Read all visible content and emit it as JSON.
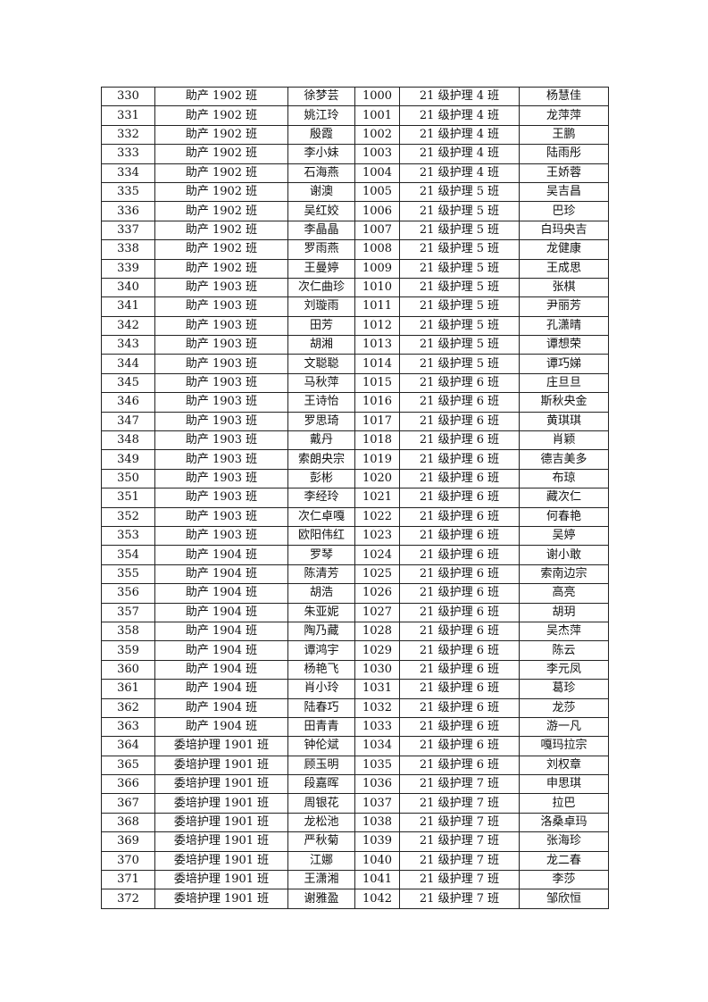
{
  "table": {
    "rows": [
      [
        "330",
        "助产 1902 班",
        "徐梦芸",
        "1000",
        "21 级护理 4 班",
        "杨慧佳"
      ],
      [
        "331",
        "助产 1902 班",
        "姚江玲",
        "1001",
        "21 级护理 4 班",
        "龙萍萍"
      ],
      [
        "332",
        "助产 1902 班",
        "殷霞",
        "1002",
        "21 级护理 4 班",
        "王鹏"
      ],
      [
        "333",
        "助产 1902 班",
        "李小妹",
        "1003",
        "21 级护理 4 班",
        "陆雨彤"
      ],
      [
        "334",
        "助产 1902 班",
        "石海燕",
        "1004",
        "21 级护理 4 班",
        "王娇蓉"
      ],
      [
        "335",
        "助产 1902 班",
        "谢澳",
        "1005",
        "21 级护理 5 班",
        "吴吉昌"
      ],
      [
        "336",
        "助产 1902 班",
        "吴红姣",
        "1006",
        "21 级护理 5 班",
        "巴珍"
      ],
      [
        "337",
        "助产 1902 班",
        "李晶晶",
        "1007",
        "21 级护理 5 班",
        "白玛央吉"
      ],
      [
        "338",
        "助产 1902 班",
        "罗雨燕",
        "1008",
        "21 级护理 5 班",
        "龙健康"
      ],
      [
        "339",
        "助产 1902 班",
        "王曼婷",
        "1009",
        "21 级护理 5 班",
        "王成思"
      ],
      [
        "340",
        "助产 1903 班",
        "次仁曲珍",
        "1010",
        "21 级护理 5 班",
        "张棋"
      ],
      [
        "341",
        "助产 1903 班",
        "刘璇雨",
        "1011",
        "21 级护理 5 班",
        "尹丽芳"
      ],
      [
        "342",
        "助产 1903 班",
        "田芳",
        "1012",
        "21 级护理 5 班",
        "孔潇晴"
      ],
      [
        "343",
        "助产 1903 班",
        "胡湘",
        "1013",
        "21 级护理 5 班",
        "谭想荣"
      ],
      [
        "344",
        "助产 1903 班",
        "文聪聪",
        "1014",
        "21 级护理 5 班",
        "谭巧娣"
      ],
      [
        "345",
        "助产 1903 班",
        "马秋萍",
        "1015",
        "21 级护理 6 班",
        "庄旦旦"
      ],
      [
        "346",
        "助产 1903 班",
        "王诗怡",
        "1016",
        "21 级护理 6 班",
        "斯秋央金"
      ],
      [
        "347",
        "助产 1903 班",
        "罗思琦",
        "1017",
        "21 级护理 6 班",
        "黄琪琪"
      ],
      [
        "348",
        "助产 1903 班",
        "戴丹",
        "1018",
        "21 级护理 6 班",
        "肖颖"
      ],
      [
        "349",
        "助产 1903 班",
        "索朗央宗",
        "1019",
        "21 级护理 6 班",
        "德吉美多"
      ],
      [
        "350",
        "助产 1903 班",
        "彭彬",
        "1020",
        "21 级护理 6 班",
        "布琼"
      ],
      [
        "351",
        "助产 1903 班",
        "李经玲",
        "1021",
        "21 级护理 6 班",
        "藏次仁"
      ],
      [
        "352",
        "助产 1903 班",
        "次仁卓嘎",
        "1022",
        "21 级护理 6 班",
        "何春艳"
      ],
      [
        "353",
        "助产 1903 班",
        "欧阳伟红",
        "1023",
        "21 级护理 6 班",
        "吴婷"
      ],
      [
        "354",
        "助产 1904 班",
        "罗琴",
        "1024",
        "21 级护理 6 班",
        "谢小敢"
      ],
      [
        "355",
        "助产 1904 班",
        "陈清芳",
        "1025",
        "21 级护理 6 班",
        "索南边宗"
      ],
      [
        "356",
        "助产 1904 班",
        "胡浩",
        "1026",
        "21 级护理 6 班",
        "高亮"
      ],
      [
        "357",
        "助产 1904 班",
        "朱亚妮",
        "1027",
        "21 级护理 6 班",
        "胡玥"
      ],
      [
        "358",
        "助产 1904 班",
        "陶乃藏",
        "1028",
        "21 级护理 6 班",
        "吴杰萍"
      ],
      [
        "359",
        "助产 1904 班",
        "谭鸿宇",
        "1029",
        "21 级护理 6 班",
        "陈云"
      ],
      [
        "360",
        "助产 1904 班",
        "杨艳飞",
        "1030",
        "21 级护理 6 班",
        "李元凤"
      ],
      [
        "361",
        "助产 1904 班",
        "肖小玲",
        "1031",
        "21 级护理 6 班",
        "葛珍"
      ],
      [
        "362",
        "助产 1904 班",
        "陆春巧",
        "1032",
        "21 级护理 6 班",
        "龙莎"
      ],
      [
        "363",
        "助产 1904 班",
        "田青青",
        "1033",
        "21 级护理 6 班",
        "游一凡"
      ],
      [
        "364",
        "委培护理 1901 班",
        "钟伦斌",
        "1034",
        "21 级护理 6 班",
        "嘎玛拉宗"
      ],
      [
        "365",
        "委培护理 1901 班",
        "顾玉明",
        "1035",
        "21 级护理 6 班",
        "刘权章"
      ],
      [
        "366",
        "委培护理 1901 班",
        "段嘉晖",
        "1036",
        "21 级护理 7 班",
        "申思琪"
      ],
      [
        "367",
        "委培护理 1901 班",
        "周银花",
        "1037",
        "21 级护理 7 班",
        "拉巴"
      ],
      [
        "368",
        "委培护理 1901 班",
        "龙松池",
        "1038",
        "21 级护理 7 班",
        "洛桑卓玛"
      ],
      [
        "369",
        "委培护理 1901 班",
        "严秋菊",
        "1039",
        "21 级护理 7 班",
        "张海珍"
      ],
      [
        "370",
        "委培护理 1901 班",
        "江娜",
        "1040",
        "21 级护理 7 班",
        "龙二春"
      ],
      [
        "371",
        "委培护理 1901 班",
        "王潇湘",
        "1041",
        "21 级护理 7 班",
        "李莎"
      ],
      [
        "372",
        "委培护理 1901 班",
        "谢雅盈",
        "1042",
        "21 级护理 7 班",
        "邹欣恒"
      ]
    ]
  }
}
